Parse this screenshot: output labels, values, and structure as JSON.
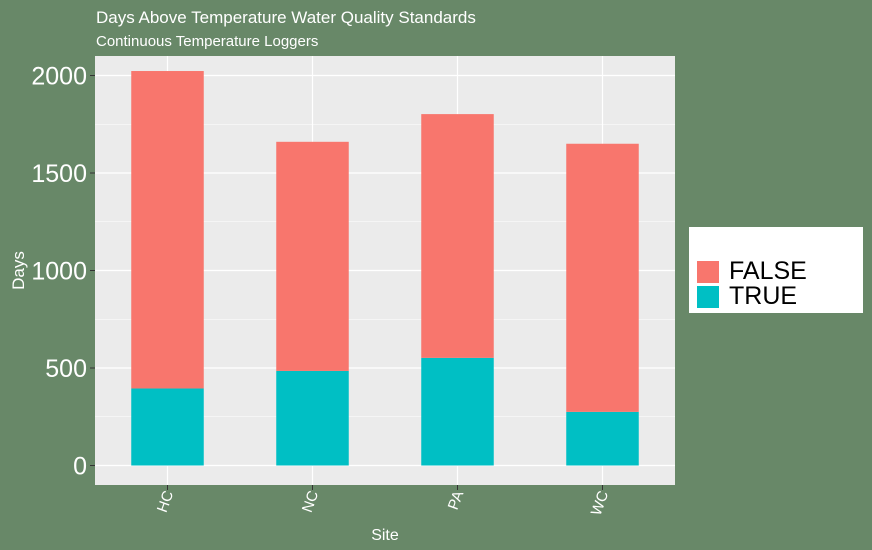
{
  "chart_data": {
    "type": "bar",
    "stacked": true,
    "title": "Days Above Temperature Water Quality Standards",
    "subtitle": "Continuous Temperature Loggers",
    "xlabel": "Site",
    "ylabel": "Days",
    "categories": [
      "HC",
      "NC",
      "PA",
      "WC"
    ],
    "series": [
      {
        "name": "TRUE",
        "color": "#00BFC4",
        "values": [
          395,
          485,
          552,
          275
        ]
      },
      {
        "name": "FALSE",
        "color": "#F8766D",
        "values": [
          1628,
          1175,
          1250,
          1375
        ]
      }
    ],
    "ylim": [
      -100,
      2100
    ],
    "yticks": [
      0,
      500,
      1000,
      1500,
      2000
    ],
    "grid": true,
    "legend_position": "right",
    "legend_order": [
      "FALSE",
      "TRUE"
    ],
    "panel_background": "#EBEBEB",
    "plot_background": "#688868"
  }
}
